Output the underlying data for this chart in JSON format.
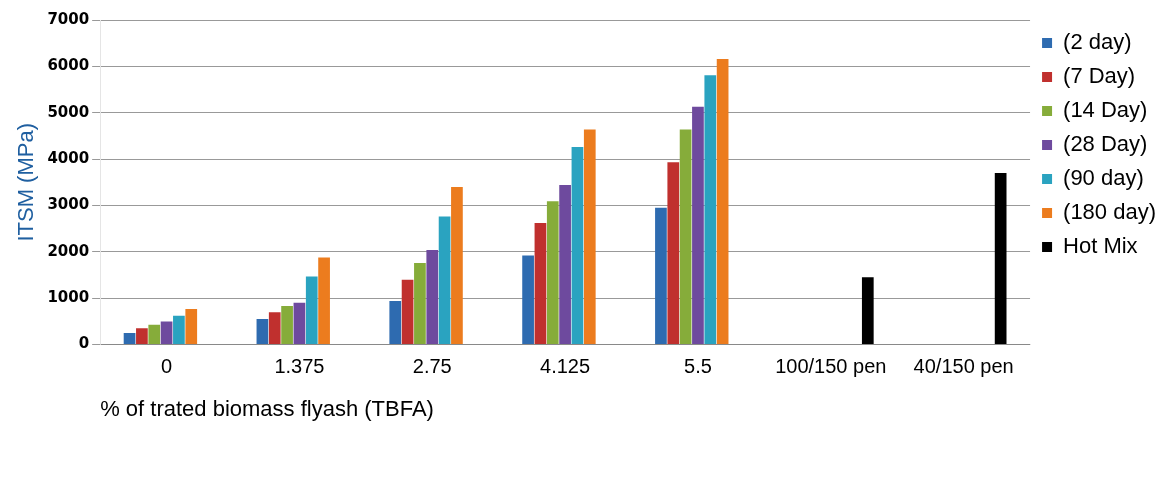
{
  "chart_data": {
    "type": "bar",
    "xlabel": "% of trated biomass flyash (TBFA)",
    "ylabel": "ITSM (MPa)",
    "categories": [
      "0",
      "1.375",
      "2.75",
      "4.125",
      "5.5",
      "100/150 pen",
      "40/150 pen"
    ],
    "series": [
      {
        "name": "(2 day)",
        "color": "#2e6bb0",
        "values": [
          250,
          550,
          940,
          1920,
          2950,
          null,
          null
        ]
      },
      {
        "name": "(7 Day)",
        "color": "#c0302e",
        "values": [
          350,
          700,
          1400,
          2620,
          3930,
          null,
          null
        ]
      },
      {
        "name": "(14 Day)",
        "color": "#86ac3a",
        "values": [
          430,
          830,
          1760,
          3090,
          4640,
          null,
          null
        ]
      },
      {
        "name": "(28 Day)",
        "color": "#6e4a9e",
        "values": [
          500,
          900,
          2040,
          3440,
          5130,
          null,
          null
        ]
      },
      {
        "name": "(90 day)",
        "color": "#2aa3c0",
        "values": [
          620,
          1470,
          2760,
          4260,
          5810,
          null,
          null
        ]
      },
      {
        "name": "(180 day)",
        "color": "#ec7c1e",
        "values": [
          770,
          1880,
          3400,
          4640,
          6160,
          null,
          null
        ]
      },
      {
        "name": "Hot Mix",
        "color": "#000000",
        "values": [
          null,
          null,
          null,
          null,
          null,
          1450,
          3700
        ]
      }
    ],
    "ylim": [
      0,
      7000
    ],
    "yticks": [
      0,
      1000,
      2000,
      3000,
      4000,
      5000,
      6000,
      7000
    ],
    "grid": "y",
    "legend": "right"
  }
}
